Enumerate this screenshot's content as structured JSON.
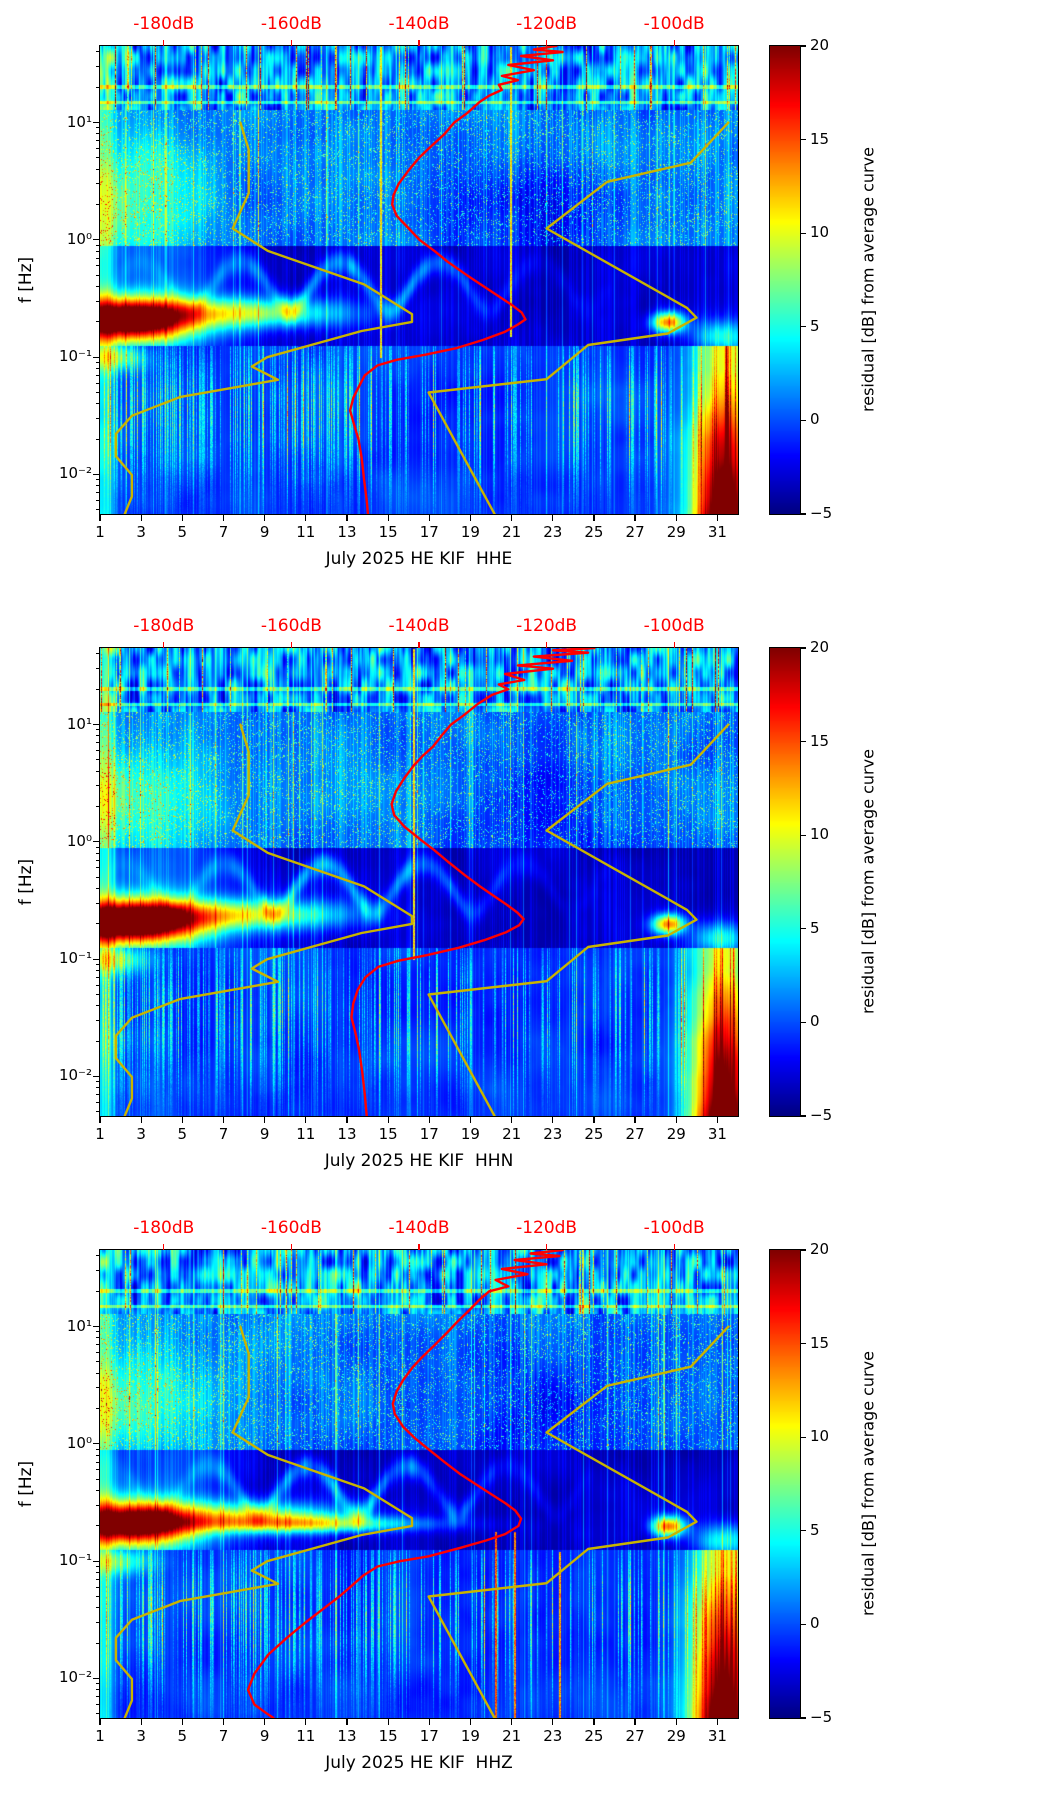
{
  "chart_data": {
    "type": "heatmap",
    "description": "Three stacked seismic noise spectrograms (residual in dB from average curve) for station HE KIF, July 2025, channels HHE, HHN, HHZ. Overlaid red curve is the station median power spectrum and yellow curves are the Peterson NLNM/NHNM noise models, all read against the red top dB axis.",
    "shared": {
      "ylabel": "f [Hz]",
      "freq_range_hz": [
        0.0046,
        45
      ],
      "x_range_days": [
        1,
        32
      ],
      "x_tick_labels": [
        1,
        3,
        5,
        7,
        9,
        11,
        13,
        15,
        17,
        19,
        21,
        23,
        25,
        27,
        29,
        31
      ],
      "y_ticks": [
        {
          "f": 10,
          "label": "10¹"
        },
        {
          "f": 1,
          "label": "10⁰"
        },
        {
          "f": 0.1,
          "label": "10⁻¹"
        },
        {
          "f": 0.01,
          "label": "10⁻²"
        }
      ],
      "top_axis": {
        "range_db": [
          -190,
          -90
        ],
        "ticks": [
          {
            "db": -180,
            "label": "-180dB"
          },
          {
            "db": -160,
            "label": "-160dB"
          },
          {
            "db": -140,
            "label": "-140dB"
          },
          {
            "db": -120,
            "label": "-120dB"
          },
          {
            "db": -100,
            "label": "-100dB"
          }
        ]
      },
      "colorbar": {
        "label": "residual [dB] from average curve",
        "range": [
          -5,
          20
        ],
        "tick_values": [
          20,
          15,
          10,
          5,
          0,
          -5
        ],
        "tick_labels": [
          "20",
          "15",
          "10",
          "5",
          "0",
          "−5"
        ]
      },
      "colors": {
        "median_curve": "#ff0000",
        "noise_model_curve": "#c9b400",
        "top_axis_labels": "#ff0000"
      },
      "noise_models": {
        "nlnm_hz_db": [
          [
            10,
            -168
          ],
          [
            5.88,
            -166.7
          ],
          [
            2.5,
            -166.7
          ],
          [
            1.25,
            -169.2
          ],
          [
            0.806,
            -163.7
          ],
          [
            0.417,
            -148.6
          ],
          [
            0.233,
            -141.1
          ],
          [
            0.2,
            -141.1
          ],
          [
            0.167,
            -149
          ],
          [
            0.1,
            -163.8
          ],
          [
            0.0833,
            -166.2
          ],
          [
            0.0641,
            -162.1
          ],
          [
            0.0457,
            -177.5
          ],
          [
            0.0316,
            -185
          ],
          [
            0.0222,
            -187.5
          ],
          [
            0.0143,
            -187.5
          ],
          [
            0.0099,
            -185
          ],
          [
            0.0065,
            -185
          ],
          [
            0.003,
            -187.5
          ]
        ],
        "nhnm_hz_db": [
          [
            10,
            -91.5
          ],
          [
            4.55,
            -97.4
          ],
          [
            3.13,
            -110.5
          ],
          [
            1.25,
            -120
          ],
          [
            0.263,
            -98
          ],
          [
            0.217,
            -96.5
          ],
          [
            0.159,
            -101
          ],
          [
            0.127,
            -113.5
          ],
          [
            0.0649,
            -120
          ],
          [
            0.05,
            -138.5
          ],
          [
            0.0028,
            -126
          ]
        ]
      }
    },
    "panels": [
      {
        "channel": "HHE",
        "xlabel": "July 2025 HE KIF  HHE",
        "median_curve_hz_db": [
          [
            45,
            -118.5
          ],
          [
            42,
            -122
          ],
          [
            40,
            -117.5
          ],
          [
            37,
            -124
          ],
          [
            34,
            -119
          ],
          [
            31,
            -126
          ],
          [
            28,
            -122
          ],
          [
            25,
            -127
          ],
          [
            23,
            -124.5
          ],
          [
            21,
            -127.5
          ],
          [
            19,
            -127
          ],
          [
            17,
            -129
          ],
          [
            15,
            -130.5
          ],
          [
            12,
            -132.5
          ],
          [
            10,
            -134.5
          ],
          [
            8,
            -136
          ],
          [
            6,
            -138.5
          ],
          [
            5,
            -140
          ],
          [
            4,
            -141.5
          ],
          [
            3,
            -143.2
          ],
          [
            2.4,
            -144
          ],
          [
            2,
            -144.2
          ],
          [
            1.6,
            -143.5
          ],
          [
            1.3,
            -141.9
          ],
          [
            1,
            -139.9
          ],
          [
            0.8,
            -137.5
          ],
          [
            0.65,
            -135.5
          ],
          [
            0.5,
            -132.5
          ],
          [
            0.4,
            -129.8
          ],
          [
            0.33,
            -127.5
          ],
          [
            0.28,
            -125.5
          ],
          [
            0.24,
            -123.9
          ],
          [
            0.21,
            -123.3
          ],
          [
            0.19,
            -124.5
          ],
          [
            0.165,
            -126.5
          ],
          [
            0.14,
            -130
          ],
          [
            0.12,
            -134
          ],
          [
            0.105,
            -139
          ],
          [
            0.095,
            -143.5
          ],
          [
            0.085,
            -146.5
          ],
          [
            0.07,
            -148.5
          ],
          [
            0.055,
            -149.5
          ],
          [
            0.045,
            -150.3
          ],
          [
            0.035,
            -150.8
          ],
          [
            0.027,
            -150.2
          ],
          [
            0.02,
            -149.5
          ],
          [
            0.014,
            -149
          ],
          [
            0.009,
            -148.6
          ],
          [
            0.006,
            -148.2
          ],
          [
            0.0046,
            -148
          ]
        ],
        "render": {
          "seed": 11,
          "microseism": 26,
          "blob_w": 2.1,
          "tail": 0,
          "red_lines": [
            {
              "day": 14.6,
              "f0": 0.1,
              "f1": 45,
              "v": 9
            },
            {
              "day": 20.9,
              "f0": 0.15,
              "f1": 45,
              "v": 9
            }
          ]
        }
      },
      {
        "channel": "HHN",
        "xlabel": "July 2025 HE KIF  HHN",
        "median_curve_hz_db": [
          [
            45,
            -112.5
          ],
          [
            43,
            -119
          ],
          [
            41,
            -113.5
          ],
          [
            38,
            -122
          ],
          [
            35,
            -116
          ],
          [
            32,
            -124.5
          ],
          [
            30,
            -119
          ],
          [
            27,
            -126.5
          ],
          [
            24,
            -123.5
          ],
          [
            22,
            -127.5
          ],
          [
            20,
            -126
          ],
          [
            18,
            -128.5
          ],
          [
            15,
            -130.8
          ],
          [
            12,
            -133
          ],
          [
            10,
            -135
          ],
          [
            8,
            -136.5
          ],
          [
            6.5,
            -137.8
          ],
          [
            5.5,
            -139.3
          ],
          [
            4.5,
            -140.8
          ],
          [
            3.5,
            -142.3
          ],
          [
            2.7,
            -143.6
          ],
          [
            2.1,
            -144.3
          ],
          [
            1.7,
            -143.9
          ],
          [
            1.35,
            -142.3
          ],
          [
            1.05,
            -139.8
          ],
          [
            0.85,
            -137.6
          ],
          [
            0.68,
            -135.5
          ],
          [
            0.52,
            -132.8
          ],
          [
            0.42,
            -130.5
          ],
          [
            0.35,
            -128.4
          ],
          [
            0.29,
            -126.2
          ],
          [
            0.25,
            -124.6
          ],
          [
            0.22,
            -123.6
          ],
          [
            0.195,
            -124.3
          ],
          [
            0.17,
            -126.3
          ],
          [
            0.145,
            -129.8
          ],
          [
            0.125,
            -133.8
          ],
          [
            0.108,
            -138.8
          ],
          [
            0.097,
            -143.2
          ],
          [
            0.086,
            -146.4
          ],
          [
            0.07,
            -148.4
          ],
          [
            0.055,
            -149.6
          ],
          [
            0.042,
            -150.3
          ],
          [
            0.032,
            -150.6
          ],
          [
            0.024,
            -150
          ],
          [
            0.017,
            -149.4
          ],
          [
            0.011,
            -148.9
          ],
          [
            0.007,
            -148.5
          ],
          [
            0.0046,
            -148.2
          ]
        ],
        "render": {
          "seed": 47,
          "microseism": 28,
          "blob_w": 2.3,
          "tail": 0,
          "red_lines": [
            {
              "day": 16.2,
              "f0": 0.1,
              "f1": 45,
              "v": 9
            }
          ]
        }
      },
      {
        "channel": "HHZ",
        "xlabel": "July 2025 HE KIF  HHZ",
        "median_curve_hz_db": [
          [
            45,
            -117.5
          ],
          [
            42,
            -122.5
          ],
          [
            40,
            -118
          ],
          [
            37,
            -125
          ],
          [
            34,
            -120
          ],
          [
            31,
            -127
          ],
          [
            28,
            -123
          ],
          [
            25,
            -128
          ],
          [
            22,
            -126
          ],
          [
            20,
            -129
          ],
          [
            17,
            -130.5
          ],
          [
            14,
            -132
          ],
          [
            11,
            -134
          ],
          [
            9,
            -135.5
          ],
          [
            7,
            -137.5
          ],
          [
            5.5,
            -139.5
          ],
          [
            4.5,
            -141
          ],
          [
            3.5,
            -142.5
          ],
          [
            2.8,
            -143.5
          ],
          [
            2.2,
            -144.1
          ],
          [
            1.8,
            -143.8
          ],
          [
            1.4,
            -142.5
          ],
          [
            1.1,
            -140.5
          ],
          [
            0.9,
            -138.5
          ],
          [
            0.7,
            -136
          ],
          [
            0.55,
            -133.5
          ],
          [
            0.45,
            -131
          ],
          [
            0.37,
            -128.6
          ],
          [
            0.31,
            -126.4
          ],
          [
            0.27,
            -124.9
          ],
          [
            0.23,
            -124
          ],
          [
            0.2,
            -124.4
          ],
          [
            0.17,
            -126.5
          ],
          [
            0.15,
            -129.5
          ],
          [
            0.13,
            -133.5
          ],
          [
            0.11,
            -138.5
          ],
          [
            0.1,
            -143
          ],
          [
            0.09,
            -146.5
          ],
          [
            0.075,
            -148.8
          ],
          [
            0.06,
            -150.8
          ],
          [
            0.05,
            -152.5
          ],
          [
            0.04,
            -154.8
          ],
          [
            0.03,
            -157.8
          ],
          [
            0.022,
            -160.8
          ],
          [
            0.016,
            -163.6
          ],
          [
            0.011,
            -165.8
          ],
          [
            0.008,
            -166.8
          ],
          [
            0.006,
            -165.8
          ],
          [
            0.005,
            -163.8
          ],
          [
            0.0046,
            -162.8
          ]
        ],
        "render": {
          "seed": 83,
          "microseism": 24,
          "blob_w": 2.1,
          "tail": 9,
          "red_lines": [
            {
              "day": 20.2,
              "f0": 0.0046,
              "f1": 0.18,
              "v": 13
            },
            {
              "day": 21.1,
              "f0": 0.0046,
              "f1": 0.18,
              "v": 12
            },
            {
              "day": 23.3,
              "f0": 0.0046,
              "f1": 0.12,
              "v": 11
            }
          ]
        }
      }
    ]
  }
}
